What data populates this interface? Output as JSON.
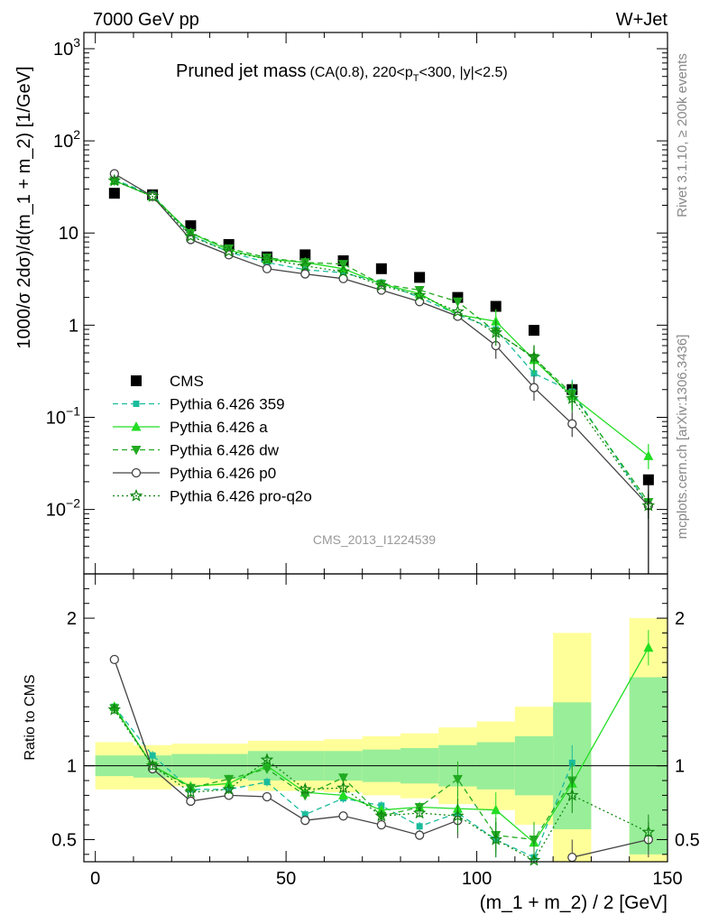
{
  "header": {
    "left": "7000 GeV pp",
    "right": "W+Jet"
  },
  "side_labels": {
    "rivet": "Rivet 3.1.10, ≥ 200k events",
    "mcplots": "mcplots.cern.ch [arXiv:1306.3436]"
  },
  "watermark": "CMS_2013_I1224539",
  "chart_data": [
    {
      "type": "scatter",
      "panel": "main",
      "title": "Pruned jet mass",
      "subtitle_parts": [
        "(CA(0.8), 220<p",
        "T",
        "<300, |y|<2.5)"
      ],
      "ylabel": "1000/σ 2dσ)/d(m_1 + m_2) [1/GeV]",
      "yscale": "log",
      "ylim": [
        0.002,
        1500
      ],
      "xlim": [
        -3,
        150
      ],
      "y_ticks": [
        {
          "v": 0.01,
          "base": "10",
          "exp": "−2"
        },
        {
          "v": 0.1,
          "base": "10",
          "exp": "−1"
        },
        {
          "v": 1,
          "base": "1",
          "exp": ""
        },
        {
          "v": 10,
          "base": "10",
          "exp": ""
        },
        {
          "v": 100,
          "base": "10",
          "exp": "2"
        },
        {
          "v": 1000,
          "base": "10",
          "exp": "3"
        }
      ],
      "x": [
        5,
        15,
        25,
        35,
        45,
        55,
        65,
        75,
        85,
        95,
        105,
        115,
        125,
        145
      ],
      "series": [
        {
          "name": "CMS",
          "color": "#000000",
          "marker": "square",
          "line": "none",
          "values": [
            27,
            26,
            12,
            7.5,
            5.5,
            5.8,
            5.0,
            4.1,
            3.3,
            2.0,
            1.6,
            0.88,
            0.2,
            0.021
          ]
        },
        {
          "name": "Pythia 6.426 359",
          "color": "#1abc9c",
          "marker": "small-square",
          "line": "dashed",
          "values": [
            38,
            26,
            9.5,
            6.2,
            4.8,
            4.0,
            3.7,
            2.9,
            2.0,
            1.3,
            0.9,
            0.3,
            0.19,
            0.011
          ]
        },
        {
          "name": "Pythia 6.426 a",
          "color": "#22dd22",
          "marker": "triangle-up",
          "line": "solid",
          "values": [
            37,
            25,
            10,
            6.5,
            5.2,
            4.8,
            4.1,
            2.8,
            2.2,
            1.3,
            1.1,
            0.42,
            0.17,
            0.038
          ]
        },
        {
          "name": "Pythia 6.426 dw",
          "color": "#22aa22",
          "marker": "triangle-down",
          "line": "dashed",
          "values": [
            37,
            25,
            10,
            6.8,
            5.4,
            4.8,
            4.6,
            2.8,
            2.4,
            1.8,
            0.85,
            0.44,
            0.18,
            0.012
          ]
        },
        {
          "name": "Pythia 6.426 p0",
          "color": "#444444",
          "marker": "open-circle",
          "line": "solid",
          "values": [
            44,
            25,
            8.5,
            5.8,
            4.1,
            3.6,
            3.2,
            2.4,
            1.8,
            1.25,
            0.6,
            0.21,
            0.085,
            0.011
          ]
        },
        {
          "name": "Pythia 6.426 pro-q2o",
          "color": "#118811",
          "marker": "star",
          "line": "dotted",
          "values": [
            37,
            25,
            9.2,
            6.3,
            5.2,
            4.4,
            3.8,
            2.7,
            2.1,
            1.4,
            0.83,
            0.45,
            0.16,
            0.011
          ]
        }
      ]
    },
    {
      "type": "scatter",
      "panel": "ratio",
      "ylabel": "Ratio to CMS",
      "xlabel": "(m_1 + m_2) / 2 [GeV]",
      "ylim": [
        0.35,
        2.3
      ],
      "xlim": [
        -3,
        150
      ],
      "x_ticks": [
        "0",
        "50",
        "100",
        "150"
      ],
      "y_ticks": [
        "0.5",
        "1",
        "2"
      ],
      "bands": [
        {
          "x0": 0,
          "x1": 10,
          "green": [
            0.93,
            1.07
          ],
          "yellow": [
            0.84,
            1.16
          ]
        },
        {
          "x0": 10,
          "x1": 20,
          "green": [
            0.92,
            1.07
          ],
          "yellow": [
            0.84,
            1.14
          ]
        },
        {
          "x0": 20,
          "x1": 30,
          "green": [
            0.92,
            1.08
          ],
          "yellow": [
            0.86,
            1.15
          ]
        },
        {
          "x0": 30,
          "x1": 40,
          "green": [
            0.91,
            1.08
          ],
          "yellow": [
            0.86,
            1.15
          ]
        },
        {
          "x0": 40,
          "x1": 60,
          "green": [
            0.9,
            1.1
          ],
          "yellow": [
            0.83,
            1.17
          ]
        },
        {
          "x0": 60,
          "x1": 70,
          "green": [
            0.9,
            1.1
          ],
          "yellow": [
            0.82,
            1.18
          ]
        },
        {
          "x0": 70,
          "x1": 80,
          "green": [
            0.89,
            1.11
          ],
          "yellow": [
            0.8,
            1.2
          ]
        },
        {
          "x0": 80,
          "x1": 90,
          "green": [
            0.88,
            1.12
          ],
          "yellow": [
            0.78,
            1.22
          ]
        },
        {
          "x0": 90,
          "x1": 100,
          "green": [
            0.86,
            1.14
          ],
          "yellow": [
            0.74,
            1.26
          ]
        },
        {
          "x0": 100,
          "x1": 110,
          "green": [
            0.84,
            1.16
          ],
          "yellow": [
            0.7,
            1.3
          ]
        },
        {
          "x0": 110,
          "x1": 120,
          "green": [
            0.8,
            1.2
          ],
          "yellow": [
            0.6,
            1.4
          ]
        },
        {
          "x0": 120,
          "x1": 130,
          "green": [
            0.57,
            1.43
          ],
          "yellow": [
            0.1,
            1.9
          ]
        },
        {
          "x0": 140,
          "x1": 150,
          "green": [
            0.4,
            1.6
          ],
          "yellow": [
            0.0,
            2.0
          ]
        }
      ],
      "series": [
        {
          "name": "Pythia 6.426 359",
          "values": [
            1.4,
            1.07,
            0.84,
            0.84,
            0.89,
            0.67,
            0.78,
            0.73,
            0.59,
            0.68,
            0.5,
            0.38,
            1.02,
            null
          ]
        },
        {
          "name": "Pythia 6.426 a",
          "values": [
            1.4,
            1.0,
            0.86,
            0.88,
            1.0,
            0.82,
            0.8,
            0.7,
            0.72,
            0.71,
            0.7,
            0.48,
            0.88,
            1.8
          ]
        },
        {
          "name": "Pythia 6.426 dw",
          "values": [
            1.39,
            1.0,
            0.85,
            0.91,
            0.98,
            0.8,
            0.92,
            0.66,
            0.72,
            0.91,
            0.53,
            0.5,
            0.9,
            null
          ]
        },
        {
          "name": "Pythia 6.426 p0",
          "values": [
            1.72,
            0.98,
            0.76,
            0.8,
            0.79,
            0.63,
            0.66,
            0.6,
            0.53,
            0.63,
            null,
            null,
            0.38,
            0.5
          ]
        },
        {
          "name": "Pythia 6.426 pro-q2o",
          "values": [
            1.38,
            1.0,
            0.82,
            0.84,
            1.04,
            0.84,
            0.85,
            0.66,
            0.68,
            0.66,
            0.5,
            0.36,
            0.8,
            0.55
          ]
        }
      ]
    }
  ]
}
